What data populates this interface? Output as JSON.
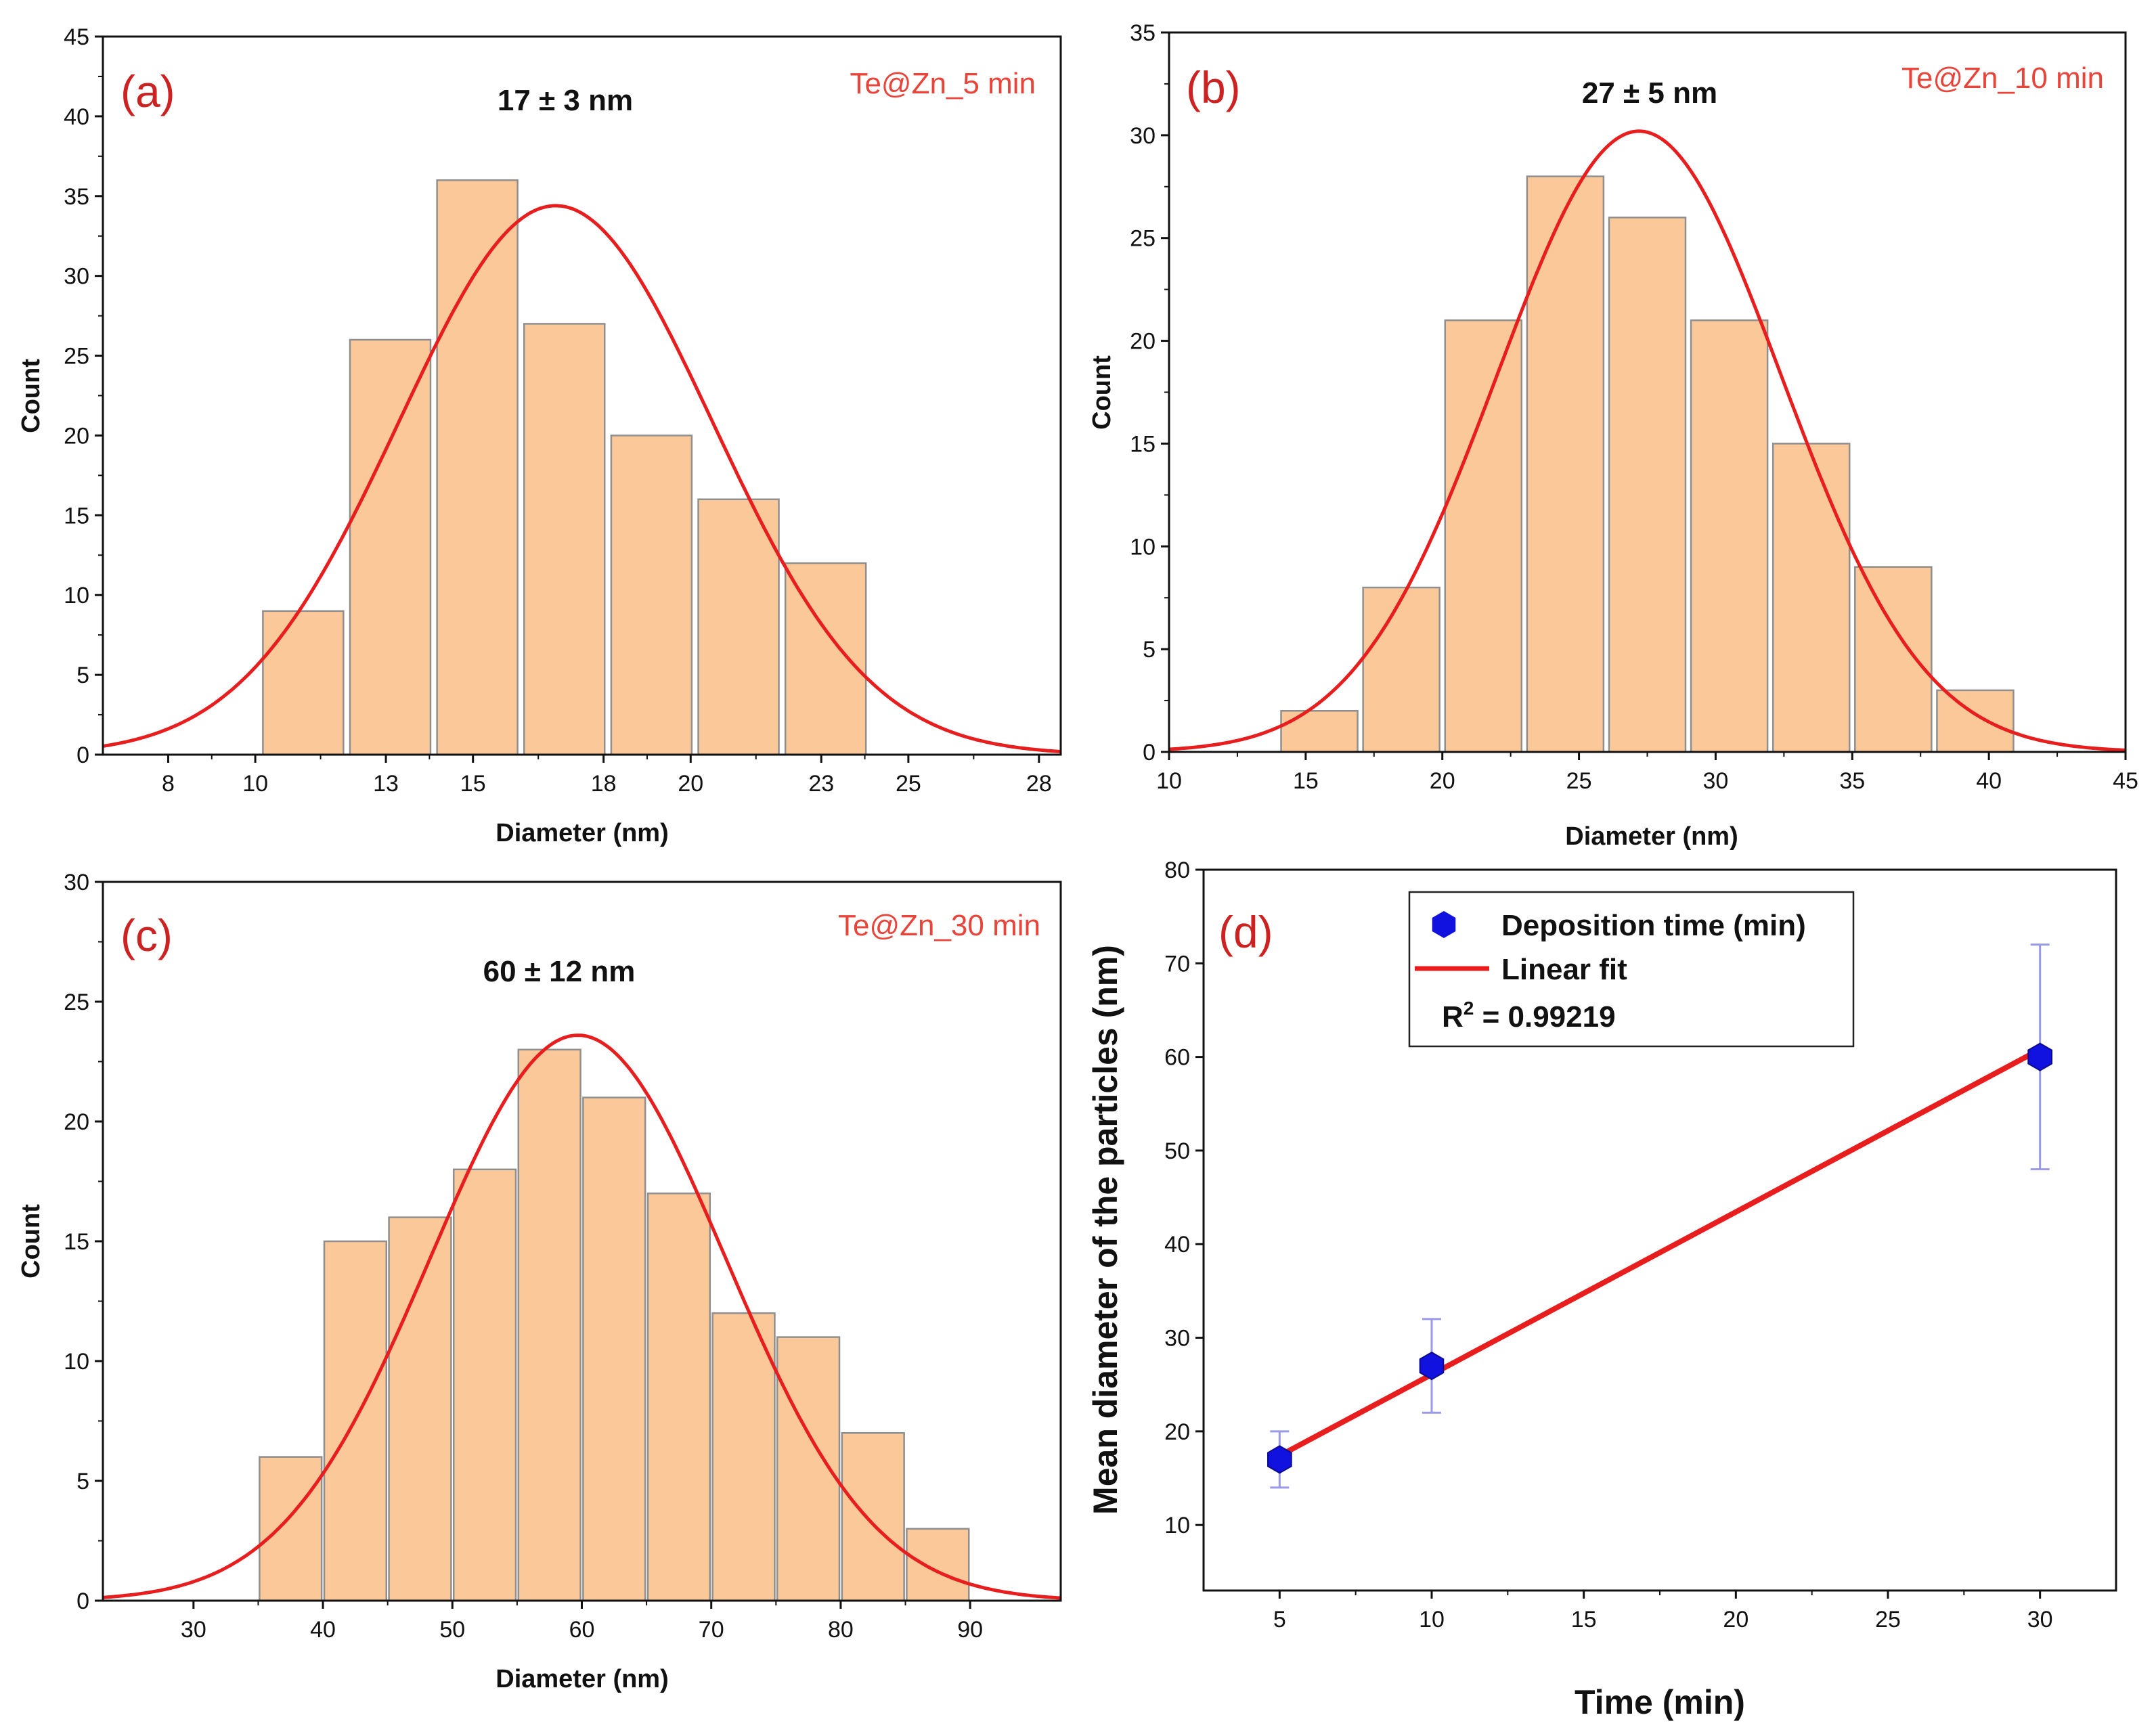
{
  "chart_data": [
    {
      "id": "a",
      "type": "bar",
      "panel_label": "(a)",
      "sample_label": "Te@Zn_5 min",
      "stat_label": "17 ± 3 nm",
      "xlabel": "Diameter (nm)",
      "ylabel": "Count",
      "xlim": [
        6.5,
        28.5
      ],
      "ylim": [
        0,
        45
      ],
      "xticks": [
        8,
        10,
        13,
        15,
        18,
        20,
        23,
        25,
        28
      ],
      "yticks": [
        0,
        5,
        10,
        15,
        20,
        25,
        30,
        35,
        40,
        45
      ],
      "bin_width": 1.85,
      "bins": [
        {
          "center": 11.1,
          "count": 9
        },
        {
          "center": 13.1,
          "count": 26
        },
        {
          "center": 15.1,
          "count": 36
        },
        {
          "center": 17.1,
          "count": 27
        },
        {
          "center": 19.1,
          "count": 20
        },
        {
          "center": 21.1,
          "count": 16
        },
        {
          "center": 23.1,
          "count": 12
        }
      ],
      "fit": {
        "type": "gaussian",
        "mean": 16.9,
        "sigma": 3.6,
        "peak": 34.4
      }
    },
    {
      "id": "b",
      "type": "bar",
      "panel_label": "(b)",
      "sample_label": "Te@Zn_10 min",
      "stat_label": "27 ± 5 nm",
      "xlabel": "Diameter (nm)",
      "ylabel": "Count",
      "xlim": [
        10,
        45
      ],
      "ylim": [
        0,
        35
      ],
      "xticks": [
        10,
        15,
        20,
        25,
        30,
        35,
        40,
        45
      ],
      "yticks": [
        0,
        5,
        10,
        15,
        20,
        25,
        30,
        35
      ],
      "bin_width": 2.8,
      "bins": [
        {
          "center": 15.5,
          "count": 2
        },
        {
          "center": 18.5,
          "count": 8
        },
        {
          "center": 21.5,
          "count": 21
        },
        {
          "center": 24.5,
          "count": 28
        },
        {
          "center": 27.5,
          "count": 26
        },
        {
          "center": 30.5,
          "count": 21
        },
        {
          "center": 33.5,
          "count": 15
        },
        {
          "center": 36.5,
          "count": 9
        },
        {
          "center": 39.5,
          "count": 3
        }
      ],
      "fit": {
        "type": "gaussian",
        "mean": 27.2,
        "sigma": 5.2,
        "peak": 30.2
      }
    },
    {
      "id": "c",
      "type": "bar",
      "panel_label": "(c)",
      "sample_label": "Te@Zn_30 min",
      "stat_label": "60 ± 12 nm",
      "xlabel": "Diameter (nm)",
      "ylabel": "Count",
      "xlim": [
        23,
        97
      ],
      "ylim": [
        0,
        30
      ],
      "xticks": [
        30,
        40,
        50,
        60,
        70,
        80,
        90
      ],
      "yticks": [
        0,
        5,
        10,
        15,
        20,
        25,
        30
      ],
      "bin_width": 4.8,
      "bins": [
        {
          "center": 37.5,
          "count": 6
        },
        {
          "center": 42.5,
          "count": 15
        },
        {
          "center": 47.5,
          "count": 16
        },
        {
          "center": 52.5,
          "count": 18
        },
        {
          "center": 57.5,
          "count": 23
        },
        {
          "center": 62.5,
          "count": 21
        },
        {
          "center": 67.5,
          "count": 17
        },
        {
          "center": 72.5,
          "count": 12
        },
        {
          "center": 77.5,
          "count": 11
        },
        {
          "center": 82.5,
          "count": 7
        },
        {
          "center": 87.5,
          "count": 3
        }
      ],
      "fit": {
        "type": "gaussian",
        "mean": 59.7,
        "sigma": 11.4,
        "peak": 23.6
      }
    },
    {
      "id": "d",
      "type": "scatter",
      "panel_label": "(d)",
      "xlabel": "Time (min)",
      "ylabel": "Mean diameter of the particles (nm)",
      "xlim": [
        2.5,
        32.5
      ],
      "ylim": [
        3,
        80
      ],
      "xticks": [
        5,
        10,
        15,
        20,
        25,
        30
      ],
      "yticks": [
        10,
        20,
        30,
        40,
        50,
        60,
        70,
        80
      ],
      "points": [
        {
          "x": 5,
          "y": 17,
          "err": 3
        },
        {
          "x": 10,
          "y": 27,
          "err": 5
        },
        {
          "x": 30,
          "y": 60,
          "err": 12
        }
      ],
      "fit_line": {
        "x": [
          5,
          30
        ],
        "y": [
          17.4,
          60.8
        ]
      },
      "legend": {
        "series_label": "Deposition time (min)",
        "fit_label": "Linear fit",
        "r2_prefix": "R",
        "r2_superscript": "2",
        "r2_value": " = 0.99219"
      }
    }
  ],
  "colors": {
    "bar_fill": "#fbc899",
    "bar_stroke": "#8f8f8f",
    "fit_line": "#e81e1e",
    "marker": "#1212e0",
    "errorbar": "#9a9ae8",
    "panel_letter": "#cc2222",
    "sample_label": "#e8443a"
  }
}
